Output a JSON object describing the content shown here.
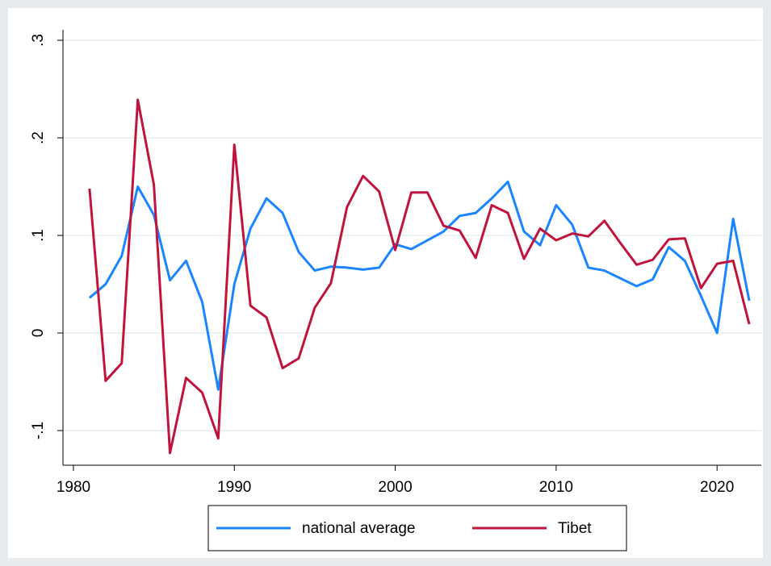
{
  "chart_data": {
    "type": "line",
    "x": [
      1981,
      1982,
      1983,
      1984,
      1985,
      1986,
      1987,
      1988,
      1989,
      1990,
      1991,
      1992,
      1993,
      1994,
      1995,
      1996,
      1997,
      1998,
      1999,
      2000,
      2001,
      2002,
      2003,
      2004,
      2005,
      2006,
      2007,
      2008,
      2009,
      2010,
      2011,
      2012,
      2013,
      2014,
      2015,
      2016,
      2017,
      2018,
      2019,
      2020,
      2021,
      2022
    ],
    "series": [
      {
        "name": "national average",
        "color": "#1a85ff",
        "values": [
          0.036,
          0.05,
          0.079,
          0.15,
          0.121,
          0.054,
          0.074,
          0.032,
          -0.058,
          0.05,
          0.107,
          0.138,
          0.123,
          0.083,
          0.064,
          0.068,
          0.067,
          0.065,
          0.067,
          0.091,
          0.086,
          0.095,
          0.104,
          0.12,
          0.123,
          0.138,
          0.155,
          0.104,
          0.09,
          0.131,
          0.111,
          0.067,
          0.064,
          0.056,
          0.048,
          0.055,
          0.088,
          0.074,
          0.038,
          0.0,
          0.117,
          0.033
        ]
      },
      {
        "name": "Tibet",
        "color": "#c0143c",
        "values": [
          0.148,
          -0.049,
          -0.031,
          0.239,
          0.152,
          -0.123,
          -0.046,
          -0.061,
          -0.108,
          0.193,
          0.028,
          0.016,
          -0.036,
          -0.026,
          0.026,
          0.051,
          0.129,
          0.161,
          0.145,
          0.085,
          0.144,
          0.144,
          0.11,
          0.105,
          0.077,
          0.131,
          0.123,
          0.076,
          0.107,
          0.095,
          0.102,
          0.099,
          0.115,
          0.092,
          0.07,
          0.075,
          0.096,
          0.097,
          0.046,
          0.071,
          0.074,
          0.009
        ]
      }
    ],
    "xlim": [
      1979.35,
      2022.75
    ],
    "xticks": [
      1980,
      1990,
      2000,
      2010,
      2020
    ],
    "ylim": [
      -0.1355,
      0.3107
    ],
    "yticks": [
      {
        "value": -0.1,
        "label": "-.1"
      },
      0,
      {
        "value": 0.1,
        "label": ".1"
      },
      {
        "value": 0.2,
        "label": ".2"
      },
      {
        "value": 0.3,
        "label": ".3"
      }
    ],
    "grid": true,
    "legend": "bottom"
  }
}
